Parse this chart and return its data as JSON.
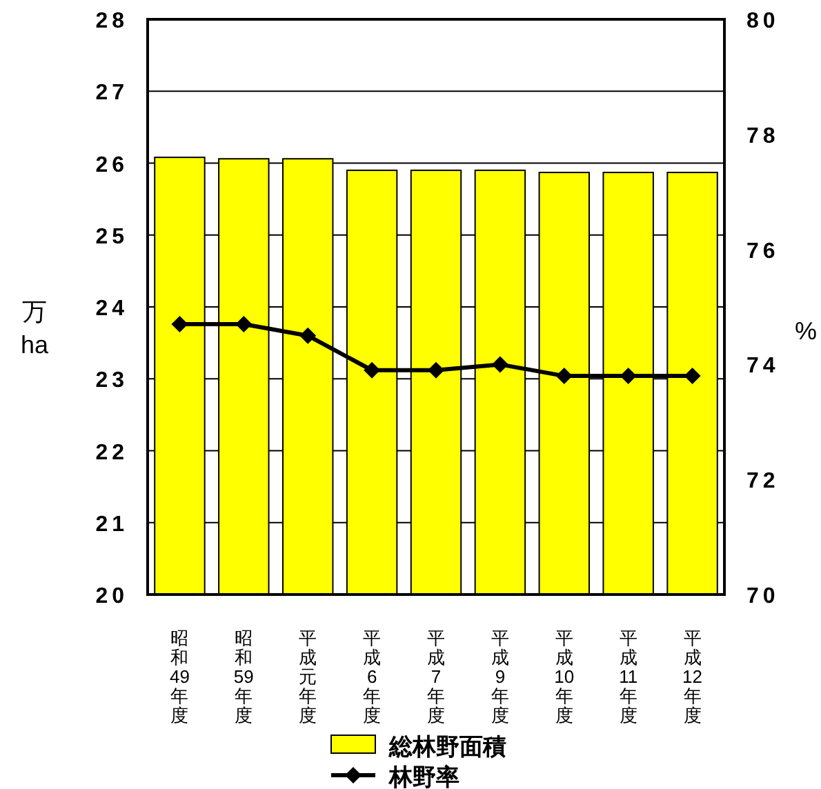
{
  "chart_data": {
    "type": "bar",
    "ylabel": "万\nha",
    "y2label": "%",
    "categories": [
      "昭和49年度",
      "昭和59年度",
      "平成元年度",
      "平成6年度",
      "平成7年度",
      "平成9年度",
      "平成10年度",
      "平成11年度",
      "平成12年度"
    ],
    "series": [
      {
        "name": "総林野面積",
        "color": "#ffff00",
        "values": [
          26.08,
          26.06,
          26.06,
          25.9,
          25.9,
          25.9,
          25.87,
          25.87,
          25.87
        ]
      },
      {
        "name": "林野率",
        "type": "line",
        "axis": "y2",
        "color": "#000000",
        "marker": "diamond",
        "values": [
          74.7,
          74.7,
          74.5,
          73.9,
          73.9,
          74.0,
          73.8,
          73.8,
          73.8
        ]
      }
    ],
    "ylim": [
      20,
      28
    ],
    "yticks": [
      20,
      21,
      22,
      23,
      24,
      25,
      26,
      27,
      28
    ],
    "y2lim": [
      70,
      80
    ],
    "y2ticks": [
      70,
      72,
      74,
      76,
      78,
      80
    ],
    "grid": "y",
    "legend": "bottom"
  }
}
